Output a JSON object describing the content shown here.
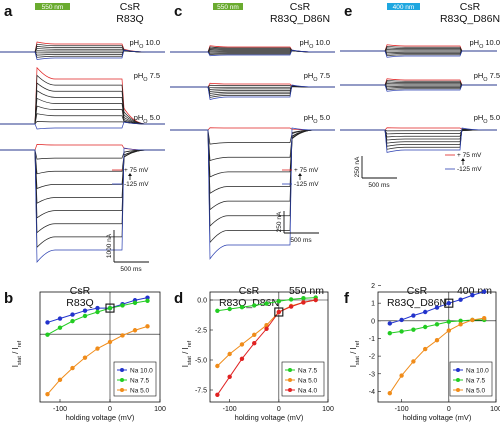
{
  "colors": {
    "green": "#6aab2f",
    "cyan": "#1ea7e0",
    "red": "#e02020",
    "blue": "#2a3fb0",
    "black": "#111111",
    "pt_blue": "#2233cc",
    "pt_green": "#22cc22",
    "pt_orange": "#f08c1a",
    "pt_red": "#e02222"
  },
  "panels": [
    {
      "letter": "a",
      "stim_label": "550 nm",
      "title1": "CsR",
      "title2": "R83Q",
      "ph_labels": [
        "pH",
        "pH",
        "pH"
      ],
      "ph_subs": [
        "O",
        "O",
        "O"
      ],
      "ph_values": [
        "10.0",
        "7.5",
        "5.0"
      ],
      "legend_top": "+ 75 mV",
      "legend_bottom": "-125 mV",
      "scale_current": "1000 nA",
      "scale_time": "500 ms"
    },
    {
      "letter": "c",
      "stim_label": "550 nm",
      "title1": "CsR",
      "title2": "R83Q_D86N",
      "ph_labels": [
        "pH",
        "pH",
        "pH"
      ],
      "ph_subs": [
        "O",
        "O",
        "O"
      ],
      "ph_values": [
        "10.0",
        "7.5",
        "5.0"
      ],
      "legend_top": "+ 75 mV",
      "legend_bottom": "-125 mV",
      "scale_current": "250 nA",
      "scale_time": "500 ms"
    },
    {
      "letter": "e",
      "stim_label": "400 nm",
      "title1": "CsR",
      "title2": "R83Q_D86N",
      "ph_labels": [
        "pH",
        "pH",
        "pH"
      ],
      "ph_subs": [
        "O",
        "O",
        "O"
      ],
      "ph_values": [
        "10.0",
        "7.5",
        "5.0"
      ],
      "legend_top": "+ 75 mV",
      "legend_bottom": "-125 mV",
      "scale_current": "250 nA",
      "scale_time": "500 ms"
    }
  ],
  "chart_data": [
    {
      "type": "line",
      "letter": "b",
      "title": "CsR",
      "subtitle": "R83Q",
      "wavelength": "",
      "xlabel": "holding voltage (mV)",
      "ylabel_main": "I",
      "ylabel_sub1": "stat",
      "ylabel_mid": " / I",
      "ylabel_sub2": "ref",
      "xlim": [
        -140,
        100
      ],
      "ylim": [
        -2.6,
        2.0
      ],
      "xticks": [
        -100,
        0,
        100
      ],
      "xtick_labels": [
        "-100",
        "0",
        "100"
      ],
      "yticks": [],
      "ytick_labels": [],
      "x": [
        -125,
        -100,
        -75,
        -50,
        -25,
        0,
        25,
        50,
        75
      ],
      "series": [
        {
          "name": "Na 10.0",
          "color": "#2233cc",
          "values": [
            0.45,
            0.6,
            0.75,
            0.9,
            1.0,
            1.0,
            1.15,
            1.3,
            1.4
          ]
        },
        {
          "name": "Na 7.5",
          "color": "#22cc22",
          "values": [
            -0.02,
            0.25,
            0.5,
            0.7,
            0.85,
            1.0,
            1.1,
            1.2,
            1.28
          ]
        },
        {
          "name": "Na 5.0",
          "color": "#f08c1a",
          "values": [
            -2.3,
            -1.75,
            -1.3,
            -0.9,
            -0.55,
            -0.3,
            -0.05,
            0.15,
            0.3
          ]
        }
      ],
      "ref_point": [
        0,
        1.0
      ]
    },
    {
      "type": "line",
      "letter": "d",
      "title": "CsR",
      "subtitle": "R83Q_D86N",
      "wavelength": "550 nm",
      "xlabel": "holding voltage (mV)",
      "ylabel_main": "I",
      "ylabel_sub1": "stat",
      "ylabel_mid": " / I",
      "ylabel_sub2": "ref",
      "xlim": [
        -140,
        100
      ],
      "ylim": [
        -8.5,
        1.5
      ],
      "xticks": [
        -100,
        0,
        100
      ],
      "xtick_labels": [
        "-100",
        "0",
        "100"
      ],
      "yticks": [
        0,
        -2.5,
        -5,
        -7.5
      ],
      "ytick_labels": [
        "0.0",
        "-2.5",
        "-5.0",
        "-7.5"
      ],
      "x": [
        -125,
        -100,
        -75,
        -50,
        -25,
        0,
        25,
        50,
        75
      ],
      "series": [
        {
          "name": "Na 7.5",
          "color": "#22cc22",
          "values": [
            -0.9,
            -0.75,
            -0.6,
            -0.45,
            -0.3,
            -0.1,
            0.05,
            0.15,
            0.2
          ]
        },
        {
          "name": "Na 5.0",
          "color": "#f08c1a",
          "values": [
            -5.5,
            -4.5,
            -3.7,
            -2.9,
            -2.1,
            -1.0,
            -0.5,
            -0.2,
            0.0
          ]
        },
        {
          "name": "Na 4.0",
          "color": "#e02222",
          "values": [
            -7.9,
            -6.4,
            -4.9,
            -3.6,
            -2.4,
            -1.0,
            -0.55,
            -0.2,
            0.0
          ]
        }
      ],
      "ref_point": [
        0,
        -1.0
      ]
    },
    {
      "type": "line",
      "letter": "f",
      "title": "CsR",
      "subtitle": "R83Q_D86N",
      "wavelength": "400 nm",
      "xlabel": "holding voltage (mV)",
      "ylabel_main": "I",
      "ylabel_sub1": "stat",
      "ylabel_mid": " / I",
      "ylabel_sub2": "ref",
      "xlim": [
        -150,
        100
      ],
      "ylim": [
        -4.6,
        2.2
      ],
      "xticks": [
        -100,
        0,
        100
      ],
      "xtick_labels": [
        "-100",
        "0",
        "100"
      ],
      "yticks": [
        2,
        1,
        0,
        -1,
        -2,
        -3,
        -4
      ],
      "ytick_labels": [
        "2",
        "1",
        "0",
        "-1",
        "-2",
        "-3",
        "-4"
      ],
      "x": [
        -125,
        -100,
        -75,
        -50,
        -25,
        0,
        25,
        50,
        75
      ],
      "series": [
        {
          "name": "Na 10.0",
          "color": "#2233cc",
          "values": [
            -0.15,
            0.05,
            0.3,
            0.5,
            0.75,
            1.0,
            1.2,
            1.45,
            1.65
          ]
        },
        {
          "name": "Na 7.5",
          "color": "#22cc22",
          "values": [
            -0.7,
            -0.6,
            -0.5,
            -0.35,
            -0.2,
            -0.05,
            0.0,
            0.05,
            0.05
          ]
        },
        {
          "name": "Na 5.0",
          "color": "#f08c1a",
          "values": [
            -4.1,
            -3.1,
            -2.3,
            -1.6,
            -1.1,
            -0.55,
            -0.2,
            0.05,
            0.15
          ]
        }
      ],
      "ref_point": [
        0,
        1.0
      ]
    }
  ]
}
